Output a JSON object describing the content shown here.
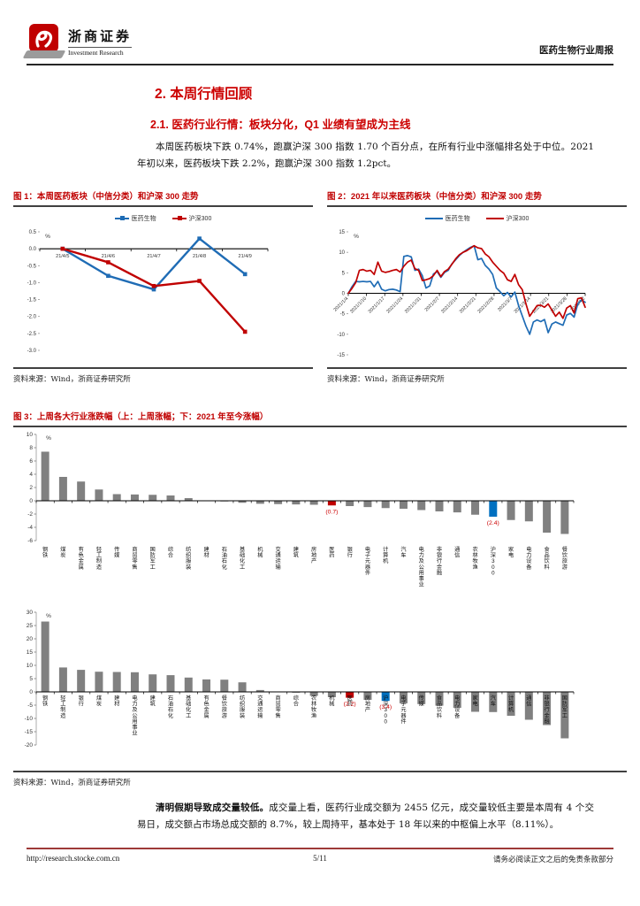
{
  "header": {
    "brand_cn": "浙商证券",
    "brand_en": "Investment Research",
    "report_type": "医药生物行业周报"
  },
  "section": {
    "h1": "2. 本周行情回顾",
    "h2": "2.1. 医药行业行情：板块分化，Q1 业绩有望成为主线",
    "para1": "本周医药板块下跌 0.74%，跑赢沪深 300 指数 1.70 个百分点，在所有行业中涨幅排名处于中位。2021 年初以来，医药板块下跌 2.2%，跑赢沪深 300 指数 1.2pct。"
  },
  "figures": {
    "fig1_title": "图 1：本周医药板块（中信分类）和沪深 300 走势",
    "fig2_title": "图 2：2021 年以来医药板块（中信分类）和沪深 300 走势",
    "fig3_title": "图 3：上周各大行业涨跌幅（上：上周涨幅；下：2021 年至今涨幅）",
    "source": "资料来源：Wind，浙商证券研究所"
  },
  "para2": {
    "bold": "清明假期导致成交量较低。",
    "rest": "成交量上看，医药行业成交额为 2455 亿元，成交量较低主要是本周有 4 个交易日，成交额占市场总成交额的 8.7%，较上周持平，基本处于 18 年以来的中枢偏上水平（8.11%）。"
  },
  "footer": {
    "url": "http://research.stocke.com.cn",
    "page": "5/11",
    "disclaimer": "请务必阅读正文之后的免责条款部分"
  },
  "colors": {
    "accent_red": "#cc0000",
    "figure_title_red": "#c00000",
    "line_blue": "#1f6cb5",
    "line_red": "#c00000",
    "bar_gray": "#808080",
    "bar_highlight_red": "#c00000",
    "bar_highlight_blue": "#0070c0",
    "value_label_red": "#cc0000"
  },
  "chart_data": [
    {
      "id": "chart1",
      "type": "line",
      "title": "本周医药板块（中信分类）和沪深300走势",
      "unit": "%",
      "categories": [
        "21/4/5",
        "21/4/6",
        "21/4/7",
        "21/4/8",
        "21/4/9"
      ],
      "series": [
        {
          "name": "医药生物",
          "color": "#1f6cb5",
          "values": [
            0.0,
            -0.8,
            -1.2,
            0.3,
            -0.75
          ]
        },
        {
          "name": "沪深300",
          "color": "#c00000",
          "values": [
            0.0,
            -0.4,
            -1.1,
            -0.95,
            -2.45
          ]
        }
      ],
      "ylim": [
        -3.0,
        0.5
      ],
      "ytick_step": 0.5,
      "ytick_decimals": 1,
      "markers": true,
      "legend_position": "top",
      "grid": false
    },
    {
      "id": "chart2",
      "type": "line",
      "title": "2021年以来医药板块（中信分类）和沪深300走势",
      "unit": "%",
      "x_labels": [
        "2021/1/4",
        "2021/1/10",
        "2021/1/17",
        "2021/1/24",
        "2021/1/31",
        "2021/2/7",
        "2021/2/14",
        "2021/2/21",
        "2021/2/28",
        "2021/3/7",
        "2021/3/14",
        "2021/3/21",
        "2021/3/28",
        "2021/4/2"
      ],
      "series": [
        {
          "name": "医药生物",
          "color": "#1f6cb5",
          "values": [
            0,
            1.6,
            2.9,
            2.8,
            2.9,
            2.8,
            2.9,
            1.6,
            2.9,
            1.0,
            0.6,
            0.9,
            1.0,
            0.8,
            0.4,
            9.0,
            9.2,
            8.9,
            5.6,
            5.9,
            4.3,
            1.3,
            1.8,
            4.7,
            5.3,
            3.9,
            5.1,
            5.6,
            7.2,
            8.2,
            9.2,
            10.0,
            10.6,
            11.2,
            11.6,
            8.2,
            8.5,
            6.8,
            5.9,
            4.6,
            1.3,
            0.4,
            -0.6,
            0.2,
            -0.9,
            0.3,
            -3.0,
            -5.5,
            -8.0,
            -10.0,
            -7.0,
            -6.5,
            -6.9,
            -6.4,
            -9.6,
            -7.5,
            -7.0,
            -7.4,
            -7.8,
            -5.3,
            -4.9,
            -5.8,
            -2.6,
            -1.6,
            -2.2
          ]
        },
        {
          "name": "沪深300",
          "color": "#c00000",
          "values": [
            0,
            1.2,
            2.6,
            5.6,
            5.8,
            5.4,
            5.6,
            4.6,
            7.6,
            5.4,
            5.1,
            5.3,
            5.6,
            5.8,
            5.2,
            6.6,
            7.6,
            8.1,
            6.0,
            5.6,
            3.1,
            3.3,
            3.6,
            4.3,
            5.6,
            4.1,
            5.3,
            5.9,
            7.1,
            8.4,
            9.4,
            10.0,
            10.4,
            11.0,
            11.6,
            11.1,
            10.9,
            9.6,
            8.9,
            7.6,
            6.6,
            5.6,
            4.9,
            3.3,
            2.9,
            4.6,
            2.1,
            0.9,
            -2.6,
            -5.6,
            -4.3,
            -3.0,
            -2.9,
            -3.4,
            -2.6,
            -4.1,
            -5.6,
            -4.6,
            -6.1,
            -3.6,
            -3.0,
            -4.8,
            -1.3,
            -1.1,
            -3.4
          ]
        }
      ],
      "ylim": [
        -15,
        15
      ],
      "ytick_step": 5,
      "ytick_decimals": 0,
      "markers": false,
      "legend_position": "top",
      "grid": false
    },
    {
      "id": "chart3a",
      "type": "bar",
      "title": "上周各大行业涨幅（上周涨幅）",
      "unit": "%",
      "categories": [
        "钢铁",
        "煤炭",
        "有色金属",
        "轻工制造",
        "传媒",
        "商贸零售",
        "国防军工",
        "综合",
        "纺织服装",
        "建材",
        "石油石化",
        "基础化工",
        "机械",
        "交通运输",
        "建筑",
        "房地产",
        "医药",
        "银行",
        "电子元器件",
        "计算机",
        "汽车",
        "电力及公用事业",
        "非银行金融",
        "通信",
        "农林牧渔",
        "沪深300",
        "家电",
        "电力设备",
        "食品饮料",
        "餐饮旅游"
      ],
      "values": [
        7.4,
        3.6,
        2.9,
        1.7,
        1.0,
        0.95,
        0.9,
        0.8,
        0.4,
        0.05,
        -0.1,
        -0.3,
        -0.45,
        -0.5,
        -0.55,
        -0.6,
        -0.7,
        -0.8,
        -0.95,
        -1.1,
        -1.2,
        -1.4,
        -1.6,
        -1.75,
        -2.1,
        -2.4,
        -2.9,
        -3.1,
        -4.8,
        -5.0
      ],
      "highlights": {
        "医药": {
          "color": "#c00000",
          "label": "(0.7)"
        },
        "沪深300": {
          "color": "#0070c0",
          "label": "(2.4)"
        }
      },
      "ylim": [
        -6,
        10
      ],
      "ytick_step": 2,
      "label_pos": "below-plot",
      "grid": false
    },
    {
      "id": "chart3b",
      "type": "bar",
      "title": "各大行业 2021 年至今涨幅",
      "unit": "%",
      "categories": [
        "钢铁",
        "轻工制造",
        "银行",
        "煤炭",
        "建材",
        "电力及公用事业",
        "建筑",
        "石油石化",
        "基础化工",
        "有色金属",
        "餐饮旅游",
        "纺织服装",
        "交通运输",
        "商贸零售",
        "综合",
        "农林牧渔",
        "机械",
        "医药",
        "房地产",
        "沪深300",
        "电子元器件",
        "传媒",
        "食品饮料",
        "电力设备",
        "家电",
        "汽车",
        "计算机",
        "通信",
        "非银行金融",
        "国防军工"
      ],
      "values": [
        26.5,
        9.2,
        8.3,
        7.6,
        7.5,
        7.4,
        6.6,
        6.3,
        5.4,
        4.7,
        4.6,
        3.6,
        0.7,
        0.1,
        -0.3,
        -1.5,
        -2.0,
        -2.2,
        -3.0,
        -3.4,
        -4.3,
        -4.6,
        -5.2,
        -6.0,
        -7.5,
        -7.6,
        -9.0,
        -10.5,
        -12.5,
        -17.5
      ],
      "highlights": {
        "医药": {
          "color": "#c00000",
          "label": "(2.2)"
        },
        "沪深300": {
          "color": "#0070c0",
          "label": "(3.4)"
        }
      },
      "ylim": [
        -20,
        30
      ],
      "ytick_step": 5,
      "label_pos": "at-zero",
      "grid": false
    }
  ]
}
